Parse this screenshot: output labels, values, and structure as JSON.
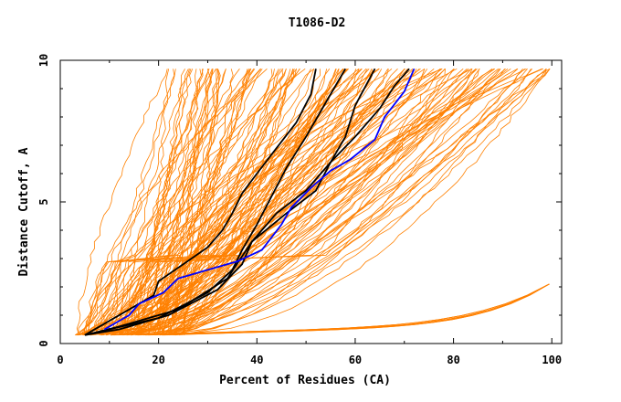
{
  "chart_data": {
    "type": "line",
    "title": "T1086-D2",
    "xlabel": "Percent of Residues (CA)",
    "ylabel": "Distance Cutoff, A",
    "xlim": [
      0,
      102
    ],
    "ylim": [
      0,
      10
    ],
    "x_ticks": [
      "0",
      "20",
      "40",
      "60",
      "80",
      "100"
    ],
    "y_ticks": [
      "0",
      "5",
      "10"
    ],
    "grid": false,
    "legend": "none",
    "colors": {
      "background_models": "#ff8000",
      "highlight": "#000000",
      "reference": "#0000ff"
    },
    "background_model_count": 160,
    "series": [
      {
        "color": "#000000",
        "x": [
          5,
          10,
          15,
          19,
          20,
          25,
          30,
          33,
          35,
          37,
          40,
          44,
          48,
          51,
          52
        ],
        "y": [
          0.3,
          0.8,
          1.3,
          1.7,
          2.2,
          2.8,
          3.4,
          4.0,
          4.6,
          5.3,
          6.0,
          6.9,
          7.8,
          8.8,
          9.7
        ]
      },
      {
        "color": "#000000",
        "x": [
          5,
          10,
          20,
          30,
          35,
          37,
          40,
          43,
          46,
          50,
          54,
          58
        ],
        "y": [
          0.3,
          0.5,
          0.9,
          1.8,
          2.6,
          3.3,
          4.2,
          5.2,
          6.2,
          7.3,
          8.5,
          9.7
        ]
      },
      {
        "color": "#000000",
        "x": [
          5,
          12,
          22,
          32,
          37,
          39,
          44,
          50,
          55,
          58,
          60,
          64
        ],
        "y": [
          0.3,
          0.5,
          1.0,
          1.9,
          2.8,
          3.6,
          4.6,
          5.4,
          6.4,
          7.3,
          8.4,
          9.7
        ]
      },
      {
        "color": "#000000",
        "x": [
          5,
          12,
          24,
          34,
          39,
          46,
          52,
          55,
          60,
          65,
          68,
          71
        ],
        "y": [
          0.3,
          0.6,
          1.2,
          2.3,
          3.6,
          4.6,
          5.4,
          6.4,
          7.3,
          8.3,
          9.1,
          9.7
        ]
      },
      {
        "color": "#0000ff",
        "x": [
          9,
          14,
          16,
          21,
          24,
          30,
          36,
          41,
          45,
          47,
          51,
          55,
          59,
          64,
          66,
          70,
          72
        ],
        "y": [
          0.5,
          1.0,
          1.4,
          1.8,
          2.3,
          2.6,
          2.9,
          3.3,
          4.2,
          4.8,
          5.5,
          6.1,
          6.5,
          7.2,
          8.0,
          8.9,
          9.7
        ]
      }
    ]
  }
}
